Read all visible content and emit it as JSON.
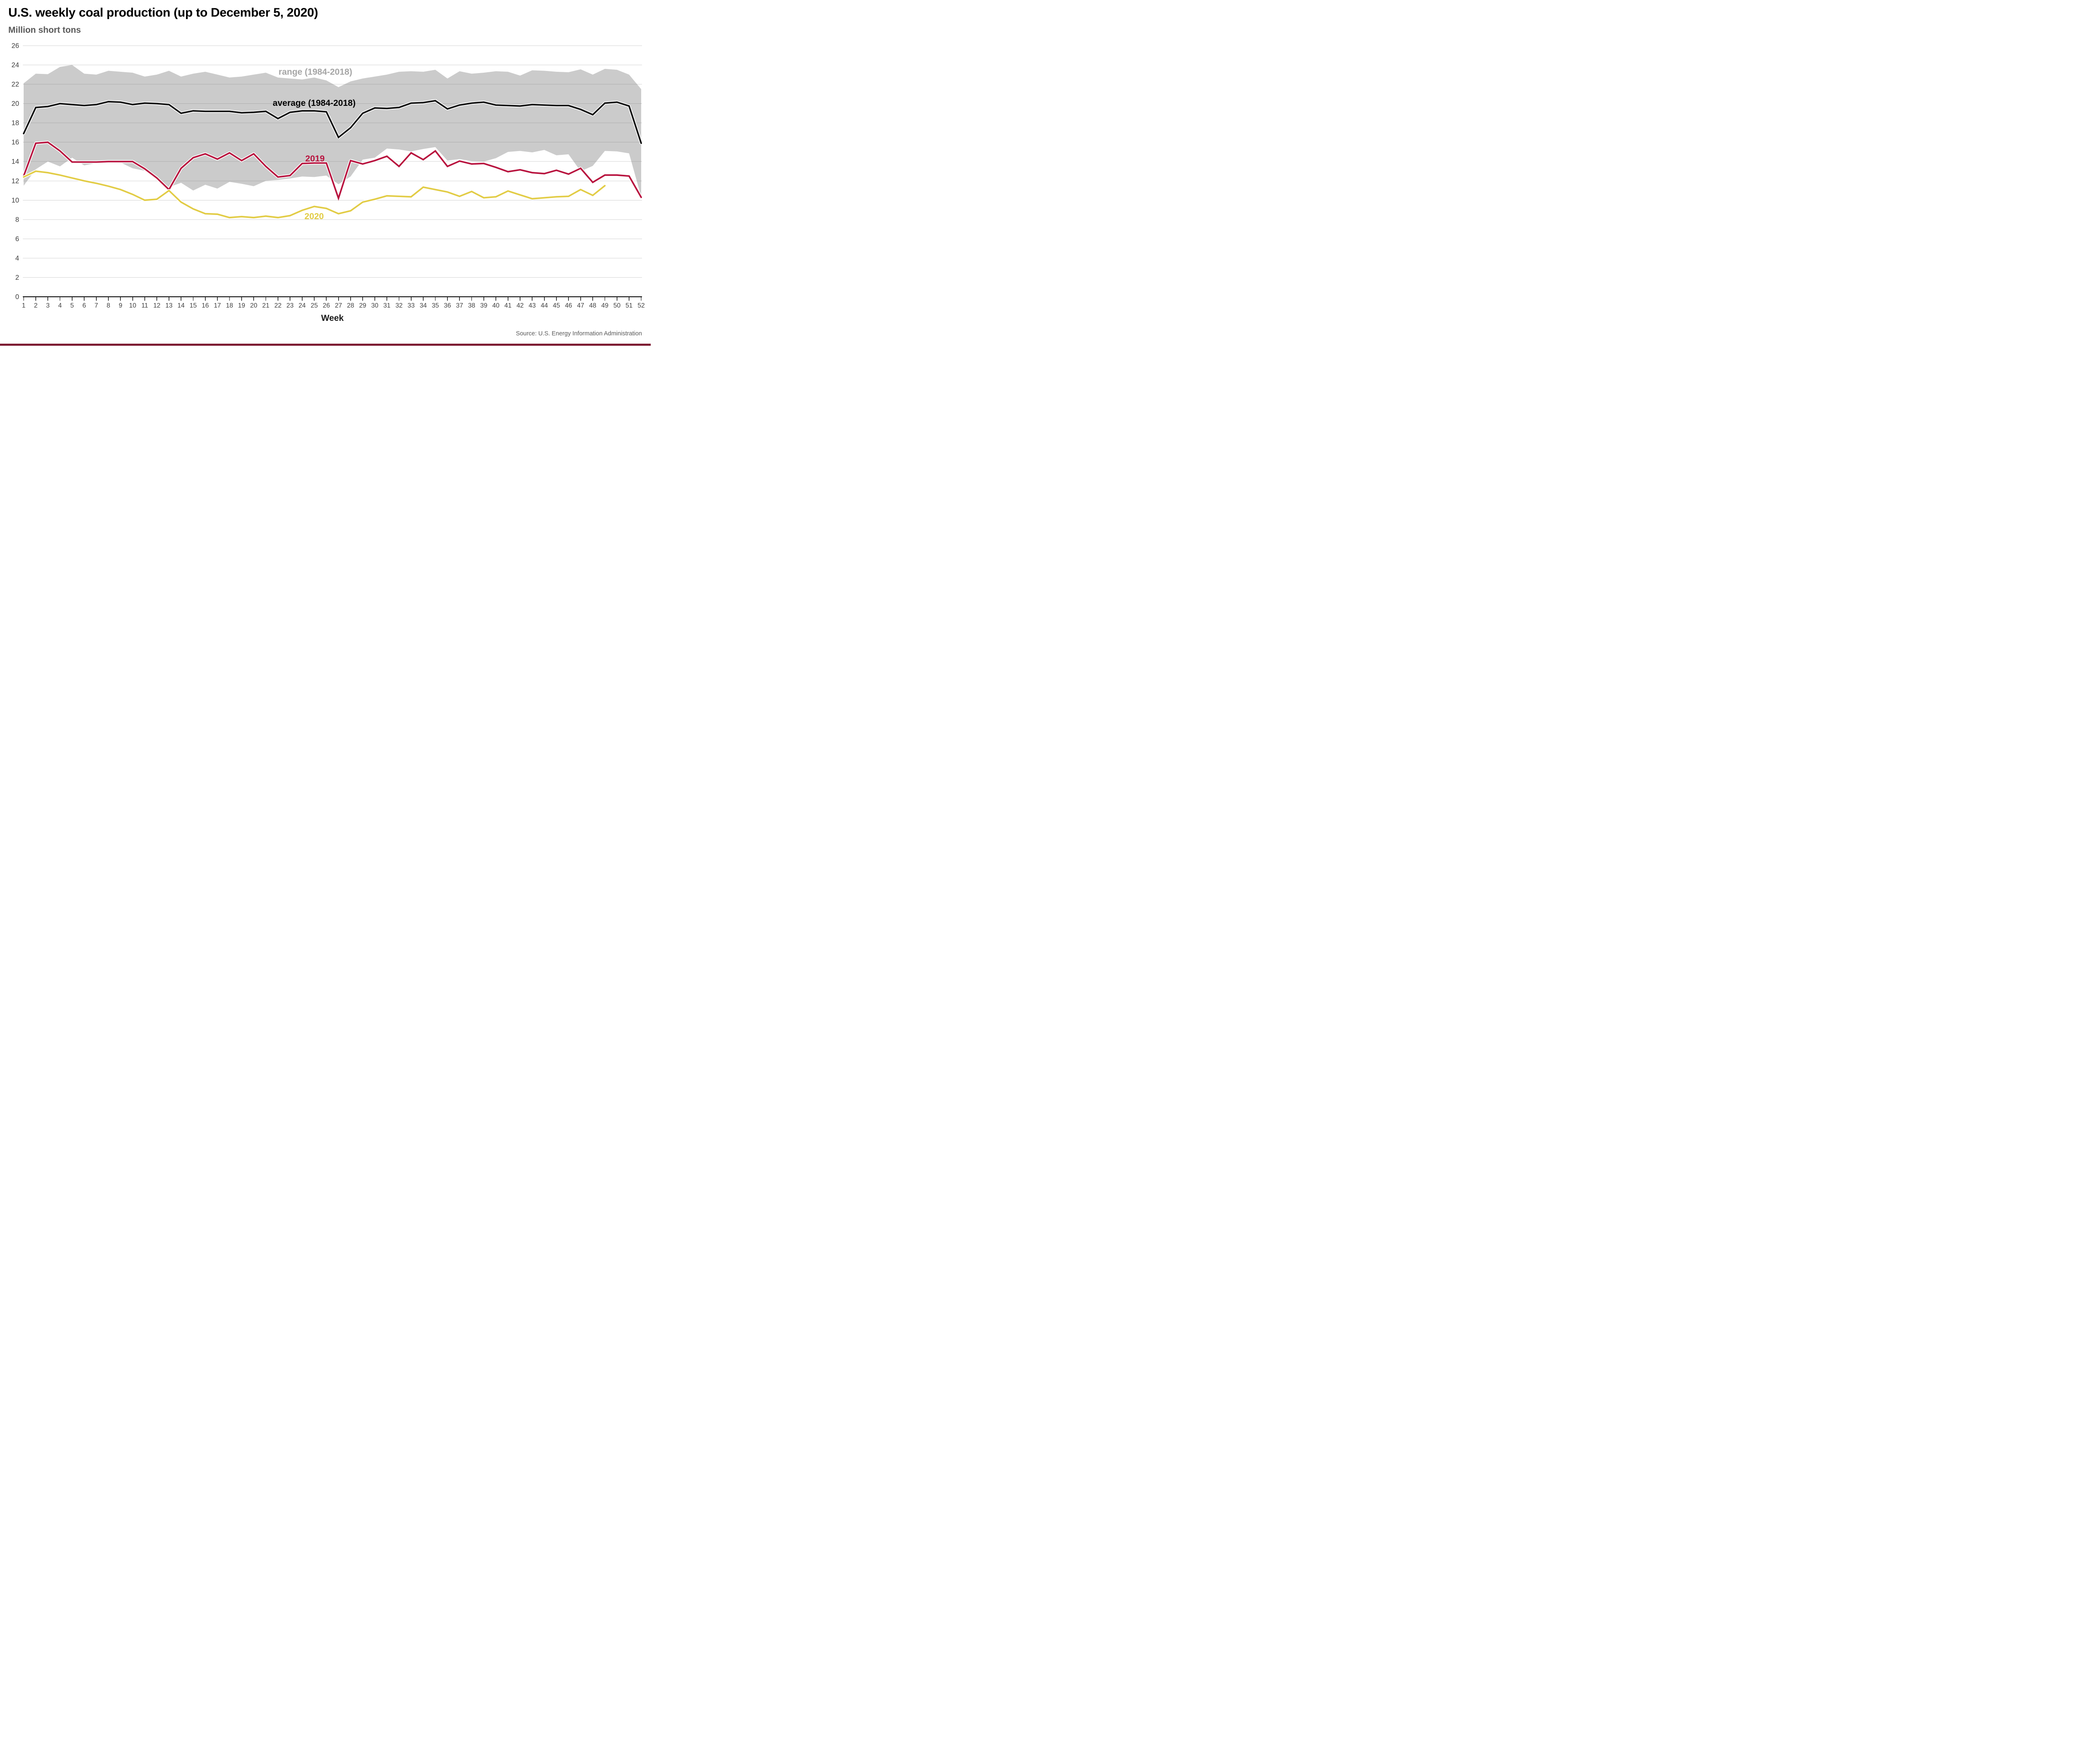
{
  "title": "U.S. weekly coal production (up to December 5, 2020)",
  "subtitle": "Million short tons",
  "source": "Source: U.S. Energy Information Administration",
  "x_axis_label": "Week",
  "labels": {
    "range": "range (1984-2018)",
    "average": "average (1984-2018)",
    "y2019": "2019",
    "y2020": "2020"
  },
  "colors": {
    "range_band": "#cbcbcb",
    "average_line": "#0d0d0d",
    "line_2019": "#b8123e",
    "line_2020": "#e2cc45",
    "range_label_text": "#a6a6a6",
    "axis_text": "#3f3f3f",
    "subtitle_text": "#595959",
    "source_text": "#595959",
    "axis_line": "#000000",
    "footer_bar": "#7d1b32"
  },
  "chart_data": {
    "type": "line",
    "title": "U.S. weekly coal production (up to December 5, 2020)",
    "ylabel": "Million short tons",
    "xlabel": "Week",
    "ylim": [
      0,
      26
    ],
    "y_tick_step": 2,
    "grid": true,
    "legend_position": "inline-annotations",
    "weeks": [
      1,
      2,
      3,
      4,
      5,
      6,
      7,
      8,
      9,
      10,
      11,
      12,
      13,
      14,
      15,
      16,
      17,
      18,
      19,
      20,
      21,
      22,
      23,
      24,
      25,
      26,
      27,
      28,
      29,
      30,
      31,
      32,
      33,
      34,
      35,
      36,
      37,
      38,
      39,
      40,
      41,
      42,
      43,
      44,
      45,
      46,
      47,
      48,
      49,
      50,
      51,
      52
    ],
    "series": [
      {
        "name": "range_top (1984-2018)",
        "values": [
          22.1,
          23.1,
          23.05,
          23.8,
          24.0,
          23.1,
          23.0,
          23.4,
          23.3,
          23.2,
          22.8,
          23.0,
          23.4,
          22.8,
          23.1,
          23.3,
          23.0,
          22.7,
          22.8,
          23.0,
          23.2,
          22.7,
          22.6,
          22.5,
          22.7,
          22.4,
          21.7,
          22.3,
          22.6,
          22.8,
          23.0,
          23.3,
          23.35,
          23.3,
          23.5,
          22.6,
          23.35,
          23.1,
          23.2,
          23.35,
          23.3,
          22.9,
          23.45,
          23.4,
          23.3,
          23.25,
          23.55,
          23.0,
          23.6,
          23.5,
          23.0,
          21.5
        ]
      },
      {
        "name": "range_bottom (1984-2018)",
        "values": [
          11.5,
          13.2,
          14.0,
          13.5,
          14.4,
          13.6,
          13.85,
          14.1,
          13.9,
          13.3,
          13.05,
          12.15,
          11.35,
          11.8,
          11.0,
          11.6,
          11.2,
          11.9,
          11.7,
          11.45,
          12.0,
          12.1,
          12.25,
          12.45,
          12.4,
          12.55,
          11.65,
          12.45,
          14.2,
          14.4,
          15.35,
          15.25,
          15.05,
          15.3,
          15.5,
          14.1,
          14.25,
          14.05,
          14.0,
          14.35,
          15.0,
          15.1,
          14.95,
          15.2,
          14.65,
          14.75,
          13.0,
          13.55,
          15.1,
          15.05,
          14.85,
          10.35
        ]
      },
      {
        "name": "average (1984-2018)",
        "values": [
          16.9,
          19.6,
          19.7,
          20.0,
          19.9,
          19.8,
          19.9,
          20.2,
          20.15,
          19.9,
          20.05,
          20.0,
          19.9,
          19.0,
          19.25,
          19.2,
          19.2,
          19.2,
          19.05,
          19.1,
          19.2,
          18.45,
          19.1,
          19.25,
          19.25,
          19.15,
          16.5,
          17.5,
          19.0,
          19.55,
          19.5,
          19.6,
          20.05,
          20.1,
          20.3,
          19.45,
          19.85,
          20.05,
          20.15,
          19.85,
          19.8,
          19.75,
          19.9,
          19.85,
          19.8,
          19.8,
          19.4,
          18.85,
          20.05,
          20.15,
          19.75,
          15.9
        ]
      },
      {
        "name": "2019",
        "values": [
          12.5,
          15.9,
          16.0,
          15.1,
          13.95,
          13.95,
          13.95,
          14.0,
          14.0,
          14.0,
          13.25,
          12.3,
          11.1,
          13.3,
          14.4,
          14.8,
          14.25,
          14.9,
          14.1,
          14.8,
          13.5,
          12.4,
          12.55,
          13.8,
          13.85,
          13.85,
          10.2,
          14.1,
          13.75,
          14.1,
          14.55,
          13.5,
          14.9,
          14.2,
          15.1,
          13.5,
          14.05,
          13.75,
          13.8,
          13.4,
          12.95,
          13.15,
          12.85,
          12.75,
          13.1,
          12.7,
          13.3,
          11.85,
          12.6,
          12.6,
          12.5,
          10.3
        ]
      },
      {
        "name": "2020",
        "values": [
          12.4,
          13.0,
          12.85,
          12.6,
          12.3,
          12.0,
          11.75,
          11.45,
          11.1,
          10.6,
          10.0,
          10.1,
          11.0,
          9.8,
          9.1,
          8.6,
          8.55,
          8.2,
          8.3,
          8.2,
          8.35,
          8.2,
          8.4,
          8.95,
          9.35,
          9.15,
          8.6,
          8.9,
          9.8,
          10.1,
          10.45,
          10.4,
          10.35,
          11.35,
          11.1,
          10.85,
          10.4,
          10.9,
          10.25,
          10.35,
          10.95,
          10.55,
          10.15,
          10.25,
          10.35,
          10.4,
          11.1,
          10.5,
          11.5
        ]
      }
    ]
  }
}
